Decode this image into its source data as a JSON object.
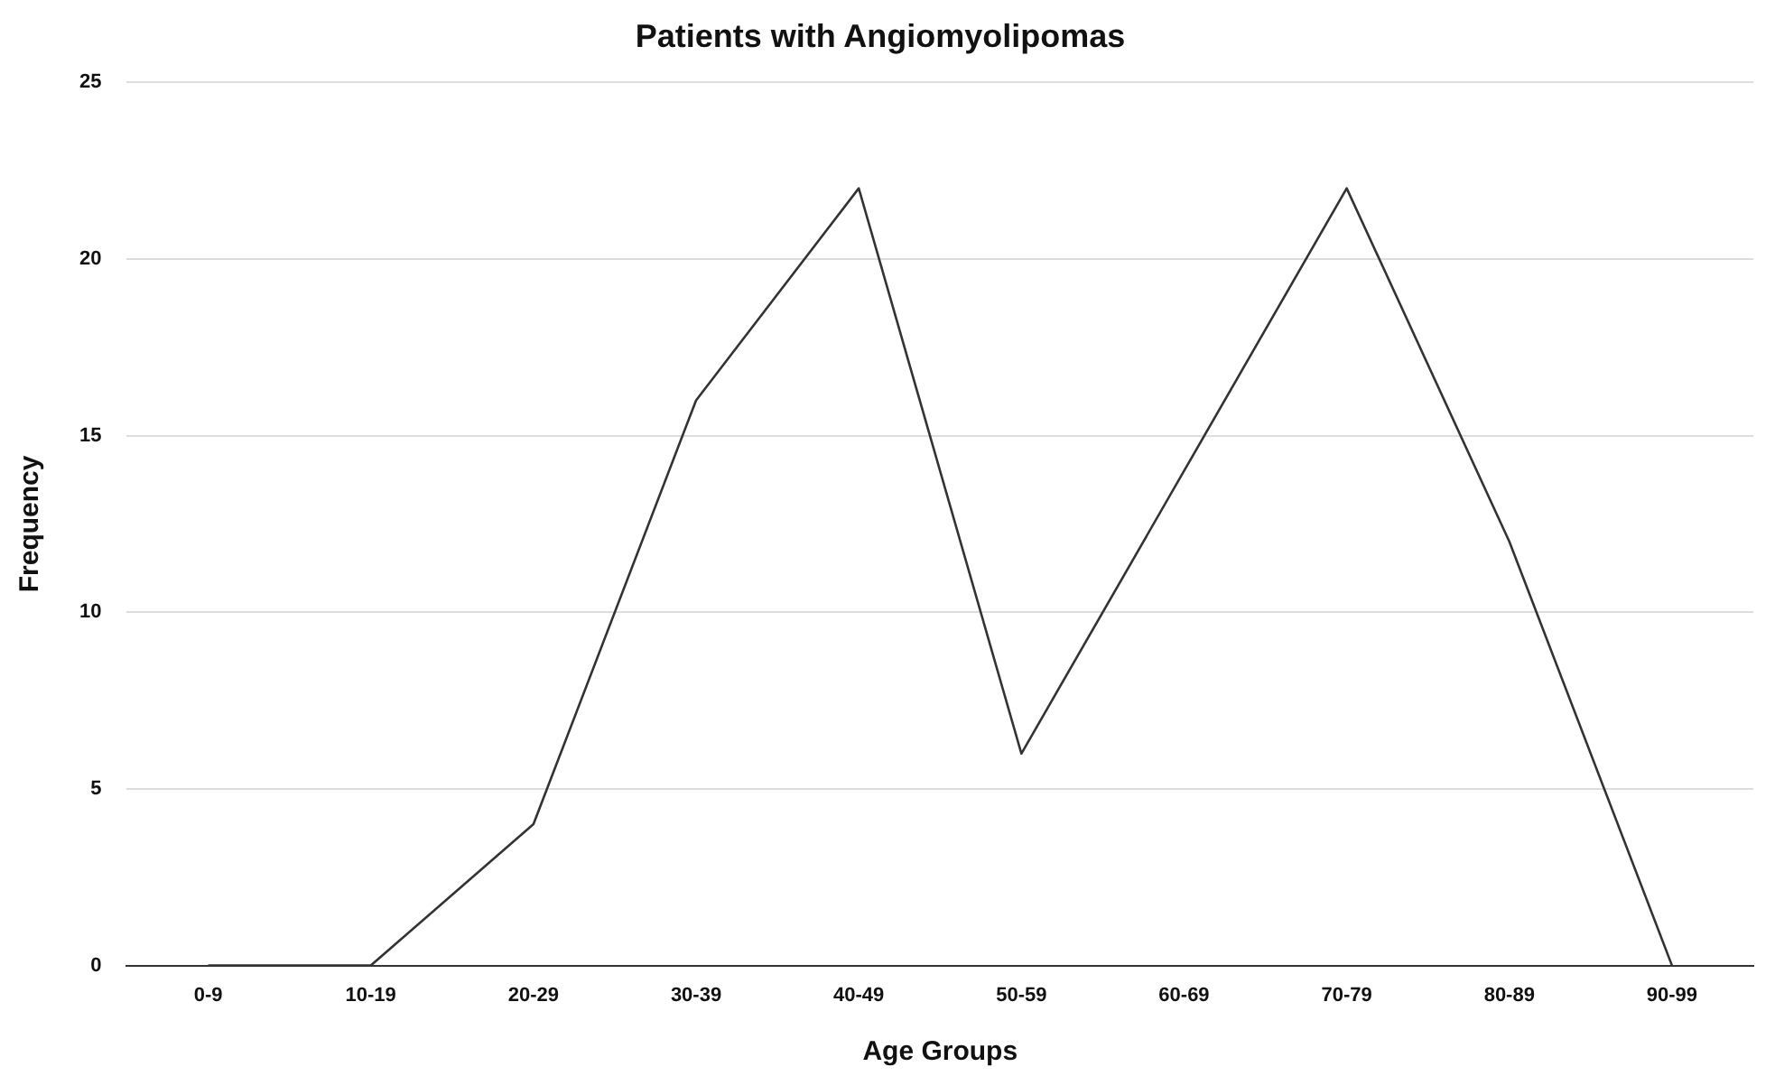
{
  "chart_data": {
    "type": "line",
    "title": "Patients with Angiomyolipomas",
    "xlabel": "Age Groups",
    "ylabel": "Frequency",
    "categories": [
      "0-9",
      "10-19",
      "20-29",
      "30-39",
      "40-49",
      "50-59",
      "60-69",
      "70-79",
      "80-89",
      "90-99"
    ],
    "series": [
      {
        "color": "#333333",
        "values": [
          0,
          0,
          4,
          16,
          22,
          6,
          14,
          22,
          12,
          0
        ]
      }
    ],
    "ylim": [
      0,
      25
    ],
    "yticks": [
      0,
      5,
      10,
      15,
      20,
      25
    ],
    "grid": "y",
    "legend": false,
    "marker": "none",
    "line_style": "solid"
  }
}
